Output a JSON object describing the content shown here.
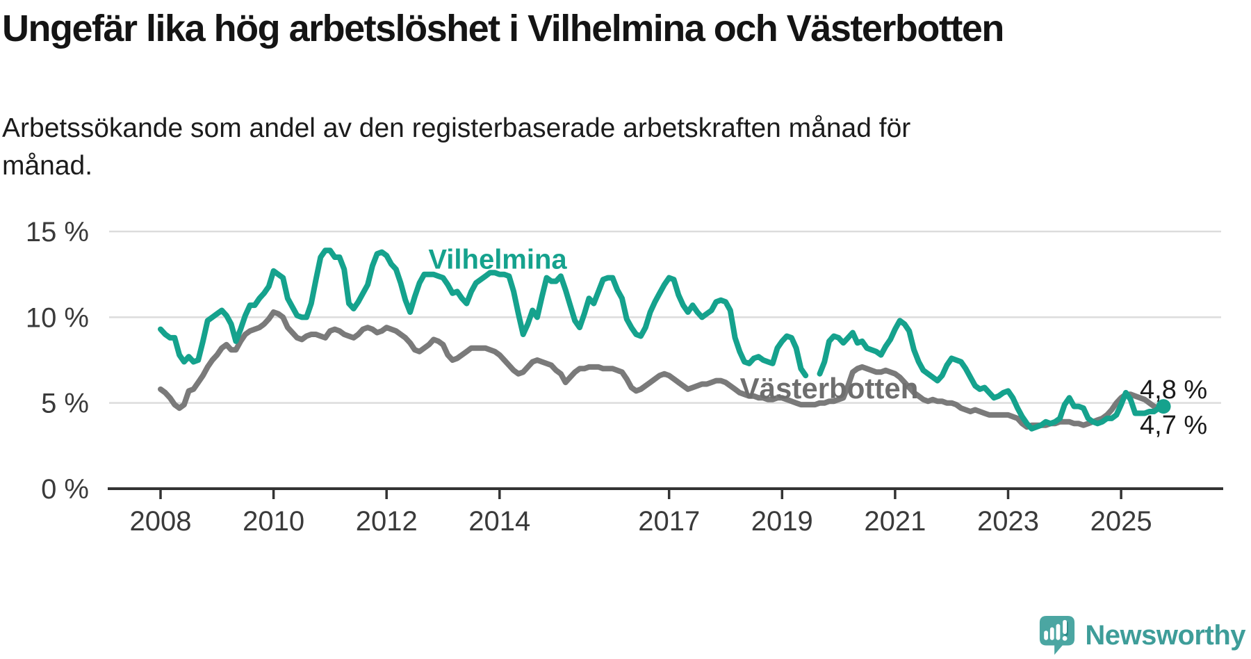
{
  "title": "Ungefär lika hög arbetslöshet i Vilhelmina och Västerbotten",
  "subtitle_lines": [
    "Arbetssökande som andel av den registerbaserade arbetskraften månad för",
    "månad."
  ],
  "series_labels": {
    "vilhelmina": "Vilhelmina",
    "vasterbotten": "Västerbotten"
  },
  "annotations": {
    "vilhelmina_end": "4,8 %",
    "vasterbotten_end": "4,7 %"
  },
  "logo": {
    "text": "Newsworthy",
    "icon": "newsworthy-bubble-chart-icon"
  },
  "colors": {
    "vilhelmina": "#15a28d",
    "vasterbotten": "#7a7a7a",
    "gridline": "#dcdcdc",
    "axis": "#333333",
    "tick_text": "#3a3a3a",
    "logo_teal": "#4ba6a2",
    "logo_text": "#3e9d99"
  },
  "chart_data": {
    "type": "line",
    "title": "Ungefär lika hög arbetslöshet i Vilhelmina och Västerbotten",
    "subtitle": "Arbetssökande som andel av den registerbaserade arbetskraften månad för månad.",
    "xlabel": "",
    "ylabel": "",
    "unit": "%",
    "frequency": "monthly",
    "start_year": 2008,
    "xlim": [
      2007.1,
      2026.8
    ],
    "ylim": [
      0,
      15.6
    ],
    "grid": true,
    "x_ticks": [
      2008,
      2010,
      2012,
      2014,
      2017,
      2019,
      2021,
      2023,
      2025
    ],
    "y_ticks": [
      {
        "value": 15,
        "label": "15 %"
      },
      {
        "value": 10,
        "label": "10 %"
      },
      {
        "value": 5,
        "label": "5 %"
      },
      {
        "value": 0,
        "label": "0 %"
      }
    ],
    "legend_position": "inline-labels",
    "end_labels": {
      "Vilhelmina": "4,8 %",
      "Västerbotten": "4,7 %"
    },
    "series": [
      {
        "name": "Vilhelmina",
        "color": "#15a28d",
        "end_marker": "dot",
        "values": [
          9.3,
          9.0,
          8.8,
          8.8,
          7.8,
          7.4,
          7.7,
          7.4,
          7.5,
          8.6,
          9.8,
          10.0,
          10.2,
          10.4,
          10.1,
          9.6,
          8.6,
          9.3,
          10.1,
          10.7,
          10.7,
          11.1,
          11.4,
          11.8,
          12.7,
          12.5,
          12.3,
          11.1,
          10.6,
          10.1,
          10.0,
          10.0,
          10.8,
          12.2,
          13.5,
          13.9,
          13.9,
          13.5,
          13.5,
          12.8,
          10.8,
          10.5,
          10.9,
          11.4,
          11.9,
          13.0,
          13.7,
          13.8,
          13.6,
          13.1,
          12.8,
          12.0,
          11.0,
          10.3,
          11.2,
          12.0,
          12.5,
          12.5,
          12.5,
          12.4,
          12.3,
          11.9,
          11.4,
          11.5,
          11.1,
          10.8,
          11.5,
          12.0,
          12.2,
          12.4,
          12.6,
          12.6,
          12.5,
          12.5,
          12.4,
          11.5,
          10.2,
          9.0,
          9.6,
          10.4,
          10.0,
          11.2,
          12.3,
          12.1,
          12.1,
          12.4,
          11.6,
          10.7,
          9.8,
          9.4,
          10.2,
          11.1,
          10.8,
          11.5,
          12.2,
          12.3,
          12.3,
          11.6,
          11.1,
          9.9,
          9.4,
          9.0,
          8.9,
          9.4,
          10.3,
          10.9,
          11.4,
          11.9,
          12.3,
          12.2,
          11.3,
          10.7,
          10.3,
          10.7,
          10.3,
          10.0,
          10.2,
          10.4,
          10.9,
          11.0,
          10.9,
          10.4,
          8.8,
          8.0,
          7.4,
          7.3,
          7.6,
          7.7,
          7.5,
          7.4,
          7.3,
          8.2,
          8.6,
          8.9,
          8.8,
          8.2,
          7.0,
          6.6,
          null,
          null,
          6.7,
          7.4,
          8.6,
          8.9,
          8.8,
          8.5,
          8.8,
          9.1,
          8.5,
          8.6,
          8.2,
          8.1,
          8.0,
          7.8,
          8.3,
          8.7,
          9.3,
          9.8,
          9.6,
          9.2,
          8.1,
          7.4,
          6.9,
          6.7,
          6.5,
          6.3,
          6.6,
          7.2,
          7.6,
          7.5,
          7.4,
          7.0,
          6.5,
          6.0,
          5.8,
          5.9,
          5.6,
          5.3,
          5.4,
          5.6,
          5.7,
          5.3,
          4.7,
          4.2,
          3.8,
          3.5,
          3.6,
          3.7,
          3.9,
          3.8,
          3.9,
          4.1,
          4.9,
          5.3,
          4.8,
          4.8,
          4.7,
          4.1,
          3.9,
          3.8,
          3.9,
          4.1,
          4.1,
          4.3,
          4.9,
          5.6,
          5.2,
          4.4,
          4.4,
          4.4,
          4.5,
          4.5,
          4.7,
          4.8
        ]
      },
      {
        "name": "Västerbotten",
        "color": "#7a7a7a",
        "end_marker": "none",
        "values": [
          5.8,
          5.6,
          5.3,
          4.9,
          4.7,
          4.9,
          5.7,
          5.8,
          6.2,
          6.6,
          7.1,
          7.5,
          7.8,
          8.2,
          8.4,
          8.1,
          8.1,
          8.6,
          9.0,
          9.2,
          9.3,
          9.4,
          9.6,
          9.9,
          10.3,
          10.2,
          10.0,
          9.4,
          9.1,
          8.8,
          8.7,
          8.9,
          9.0,
          9.0,
          8.9,
          8.8,
          9.2,
          9.3,
          9.2,
          9.0,
          8.9,
          8.8,
          9.0,
          9.3,
          9.4,
          9.3,
          9.1,
          9.2,
          9.4,
          9.3,
          9.2,
          9.0,
          8.8,
          8.5,
          8.1,
          8.0,
          8.2,
          8.4,
          8.7,
          8.6,
          8.4,
          7.8,
          7.5,
          7.6,
          7.8,
          8.0,
          8.2,
          8.2,
          8.2,
          8.2,
          8.1,
          8.0,
          7.8,
          7.5,
          7.2,
          6.9,
          6.7,
          6.8,
          7.1,
          7.4,
          7.5,
          7.4,
          7.3,
          7.2,
          6.9,
          6.7,
          6.2,
          6.5,
          6.8,
          7.0,
          7.0,
          7.1,
          7.1,
          7.1,
          7.0,
          7.0,
          7.0,
          6.9,
          6.8,
          6.4,
          5.9,
          5.7,
          5.8,
          6.0,
          6.2,
          6.4,
          6.6,
          6.7,
          6.6,
          6.4,
          6.2,
          6.0,
          5.8,
          5.9,
          6.0,
          6.1,
          6.1,
          6.2,
          6.3,
          6.3,
          6.2,
          6.0,
          5.8,
          5.6,
          5.5,
          5.4,
          5.4,
          5.3,
          5.3,
          5.2,
          5.2,
          5.3,
          5.3,
          5.2,
          5.1,
          5.0,
          4.9,
          4.9,
          4.9,
          4.9,
          5.0,
          5.0,
          5.1,
          5.1,
          5.2,
          5.3,
          6.0,
          6.8,
          7.0,
          7.1,
          7.0,
          6.9,
          6.8,
          6.8,
          6.9,
          6.8,
          6.7,
          6.5,
          6.2,
          5.9,
          5.6,
          5.4,
          5.2,
          5.1,
          5.2,
          5.1,
          5.1,
          5.0,
          5.0,
          4.9,
          4.7,
          4.6,
          4.5,
          4.6,
          4.5,
          4.4,
          4.3,
          4.3,
          4.3,
          4.3,
          4.3,
          4.2,
          4.1,
          3.8,
          3.6,
          3.7,
          3.7,
          3.7,
          3.7,
          3.8,
          3.8,
          3.9,
          3.9,
          3.9,
          3.8,
          3.8,
          3.7,
          3.8,
          3.9,
          4.0,
          4.1,
          4.3,
          4.6,
          5.0,
          5.3,
          5.5,
          5.5,
          5.4,
          5.3,
          5.2,
          5.0,
          4.8,
          4.7,
          4.7
        ]
      }
    ]
  }
}
